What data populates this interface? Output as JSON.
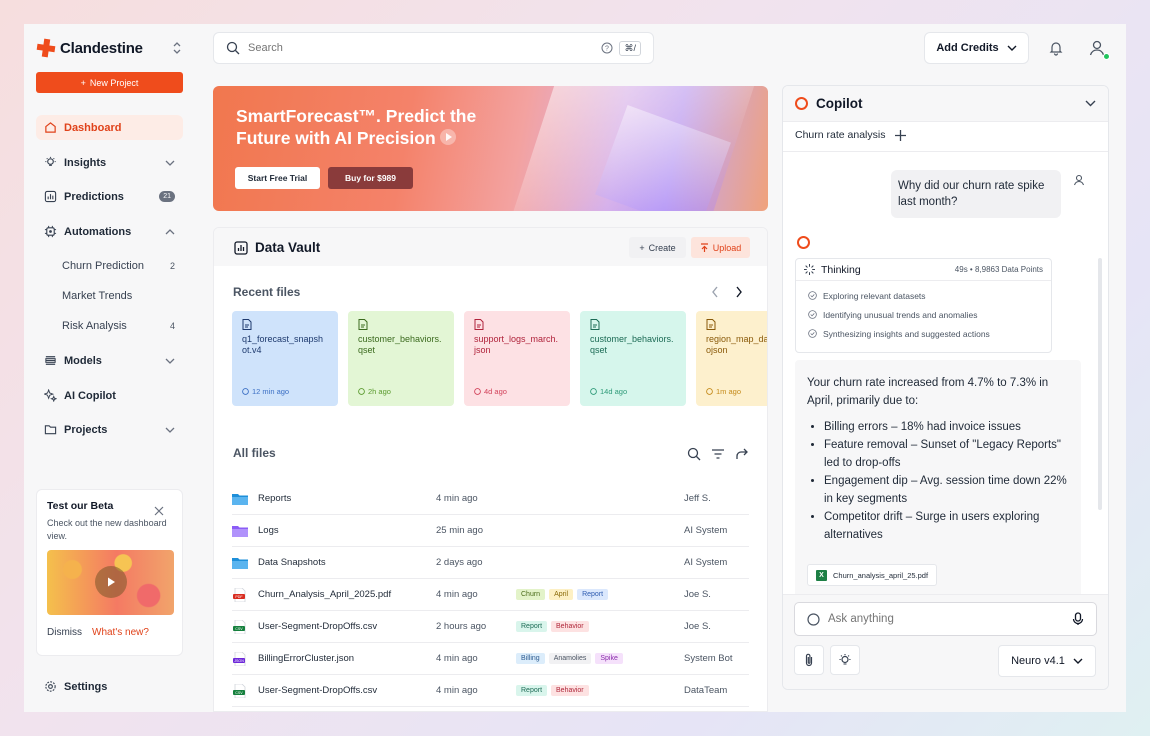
{
  "brand": {
    "name": "Clandestine"
  },
  "sidebar": {
    "new_project": "New Project",
    "items": [
      {
        "label": "Dashboard"
      },
      {
        "label": "Insights"
      },
      {
        "label": "Predictions",
        "badge": "21"
      },
      {
        "label": "Automations"
      },
      {
        "label": "Models"
      },
      {
        "label": "AI Copilot"
      },
      {
        "label": "Projects"
      }
    ],
    "automations_sub": [
      {
        "label": "Churn Prediction",
        "count": "2"
      },
      {
        "label": "Market Trends",
        "count": ""
      },
      {
        "label": "Risk Analysis",
        "count": "4"
      }
    ],
    "beta": {
      "title": "Test our Beta",
      "desc": "Check out the new dashboard view.",
      "dismiss": "Dismiss",
      "whats_new": "What's new?"
    },
    "settings": "Settings"
  },
  "topbar": {
    "search_placeholder": "Search",
    "shortcut": "⌘/",
    "credits": "Add Credits"
  },
  "hero": {
    "title": "SmartForecast™. Predict the Future with AI Precision",
    "trial": "Start Free Trial",
    "buy": "Buy for $989"
  },
  "vault": {
    "title": "Data Vault",
    "create": "Create",
    "upload": "Upload",
    "recent_label": "Recent files",
    "recent": [
      {
        "name": "q1_forecast_snapshot.v4",
        "time": "12 min ago",
        "bg": "#cfe3fb",
        "fg": "#1e3a6e",
        "tc": "#3b6fc4"
      },
      {
        "name": "customer_behaviors.qset",
        "time": "2h ago",
        "bg": "#e3f6d5",
        "fg": "#3b6a1e",
        "tc": "#5a9a2e"
      },
      {
        "name": "support_logs_march.json",
        "time": "4d ago",
        "bg": "#fde1e4",
        "fg": "#b0233b",
        "tc": "#d2425a"
      },
      {
        "name": "customer_behaviors.qset",
        "time": "14d ago",
        "bg": "#d6f6ec",
        "fg": "#1c6b55",
        "tc": "#2e9a78"
      },
      {
        "name": "region_map_data.geojson",
        "time": "1m ago",
        "bg": "#fdf0cd",
        "fg": "#8a5a0a",
        "tc": "#c48a1a"
      }
    ],
    "all_label": "All files",
    "files": [
      {
        "name": "Reports",
        "time": "4 min ago",
        "owner": "Jeff S.",
        "kind": "folder-blue",
        "tags": []
      },
      {
        "name": "Logs",
        "time": "25 min ago",
        "owner": "AI System",
        "kind": "folder-purple",
        "tags": []
      },
      {
        "name": "Data Snapshots",
        "time": "2 days ago",
        "owner": "AI System",
        "kind": "folder-blue",
        "tags": []
      },
      {
        "name": "Churn_Analysis_April_2025.pdf",
        "time": "4 min ago",
        "owner": "Joe S.",
        "kind": "pdf",
        "tags": [
          {
            "t": "Churn",
            "bg": "#e3f3c9",
            "fg": "#4a6b1a"
          },
          {
            "t": "April",
            "bg": "#fdf0c4",
            "fg": "#8a6a0a"
          },
          {
            "t": "Report",
            "bg": "#dbe8fd",
            "fg": "#2d5bb0"
          }
        ]
      },
      {
        "name": "User-Segment-DropOffs.csv",
        "time": "2 hours ago",
        "owner": "Joe S.",
        "kind": "csv",
        "tags": [
          {
            "t": "Report",
            "bg": "#d9f5ec",
            "fg": "#1c6b55"
          },
          {
            "t": "Behavior",
            "bg": "#fde2e2",
            "fg": "#b0283b"
          }
        ]
      },
      {
        "name": "BillingErrorCluster.json",
        "time": "4 min ago",
        "owner": "System Bot",
        "kind": "json",
        "tags": [
          {
            "t": "Billing",
            "bg": "#dcedfb",
            "fg": "#2d5b90"
          },
          {
            "t": "Anamolies",
            "bg": "#f1f1f3",
            "fg": "#4b5563"
          },
          {
            "t": "Spike",
            "bg": "#f5e1fb",
            "fg": "#8a2cab"
          }
        ]
      },
      {
        "name": "User-Segment-DropOffs.csv",
        "time": "4 min ago",
        "owner": "DataTeam",
        "kind": "csv",
        "tags": [
          {
            "t": "Report",
            "bg": "#d9f5ec",
            "fg": "#1c6b55"
          },
          {
            "t": "Behavior",
            "bg": "#fde2e2",
            "fg": "#b0283b"
          }
        ]
      }
    ]
  },
  "copilot": {
    "title": "Copilot",
    "tab": "Churn rate analysis",
    "question": "Why did our churn rate spike last month?",
    "thinking": {
      "label": "Thinking",
      "meta": "49s • 8,9863 Data Points",
      "steps": [
        "Exploring relevant datasets",
        "Identifying unusual trends and anomalies",
        "Synthesizing insights and suggested actions"
      ]
    },
    "answer_intro": "Your churn rate increased from 4.7% to 7.3% in April, primarily due to:",
    "bullets": [
      "Billing errors – 18% had invoice issues",
      "Feature removal – Sunset of \"Legacy Reports\" led to drop-offs",
      "Engagement dip – Avg. session time down 22% in key segments",
      "Competitor drift – Surge in users exploring alternatives"
    ],
    "attachment": "Churn_analysis_april_25.pdf",
    "ask_placeholder": "Ask anything",
    "model": "Neuro v4.1"
  },
  "colors": {
    "accent": "#ef4c1c",
    "active_bg": "#fdece6"
  }
}
